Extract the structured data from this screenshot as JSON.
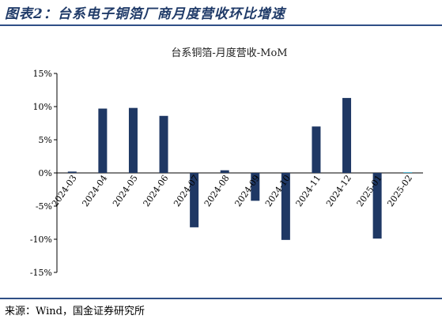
{
  "figure_title": "图表2：台系电子铜箔厂商月度营收环比增速",
  "source_note": "来源：Wind，国金证券研究所",
  "chart_data": {
    "type": "bar",
    "title": "台系铜箔-月度营收-MoM",
    "categories": [
      "2024-03",
      "2024-04",
      "2024-05",
      "2024-06",
      "2024-07",
      "2024-08",
      "2024-09",
      "2024-10",
      "2024-11",
      "2024-12",
      "2025-01",
      "2025-02"
    ],
    "series": [
      {
        "values": [
          0.2,
          9.7,
          9.8,
          8.6,
          -8.2,
          0.4,
          -4.2,
          -10.1,
          7.0,
          11.3,
          -9.9,
          0.1
        ]
      }
    ],
    "ylim": [
      -15,
      15
    ],
    "yticks": [
      -15,
      -10,
      -5,
      0,
      5,
      10,
      15
    ],
    "ytick_labels": [
      "-15%",
      "-10%",
      "-5%",
      "0%",
      "5%",
      "10%",
      "15%"
    ],
    "grid": false,
    "colors": {
      "bar": "#1f3864",
      "last_bar": "#2aa7c9",
      "title": "#1f3a68",
      "rule": "#2f4f86"
    }
  }
}
